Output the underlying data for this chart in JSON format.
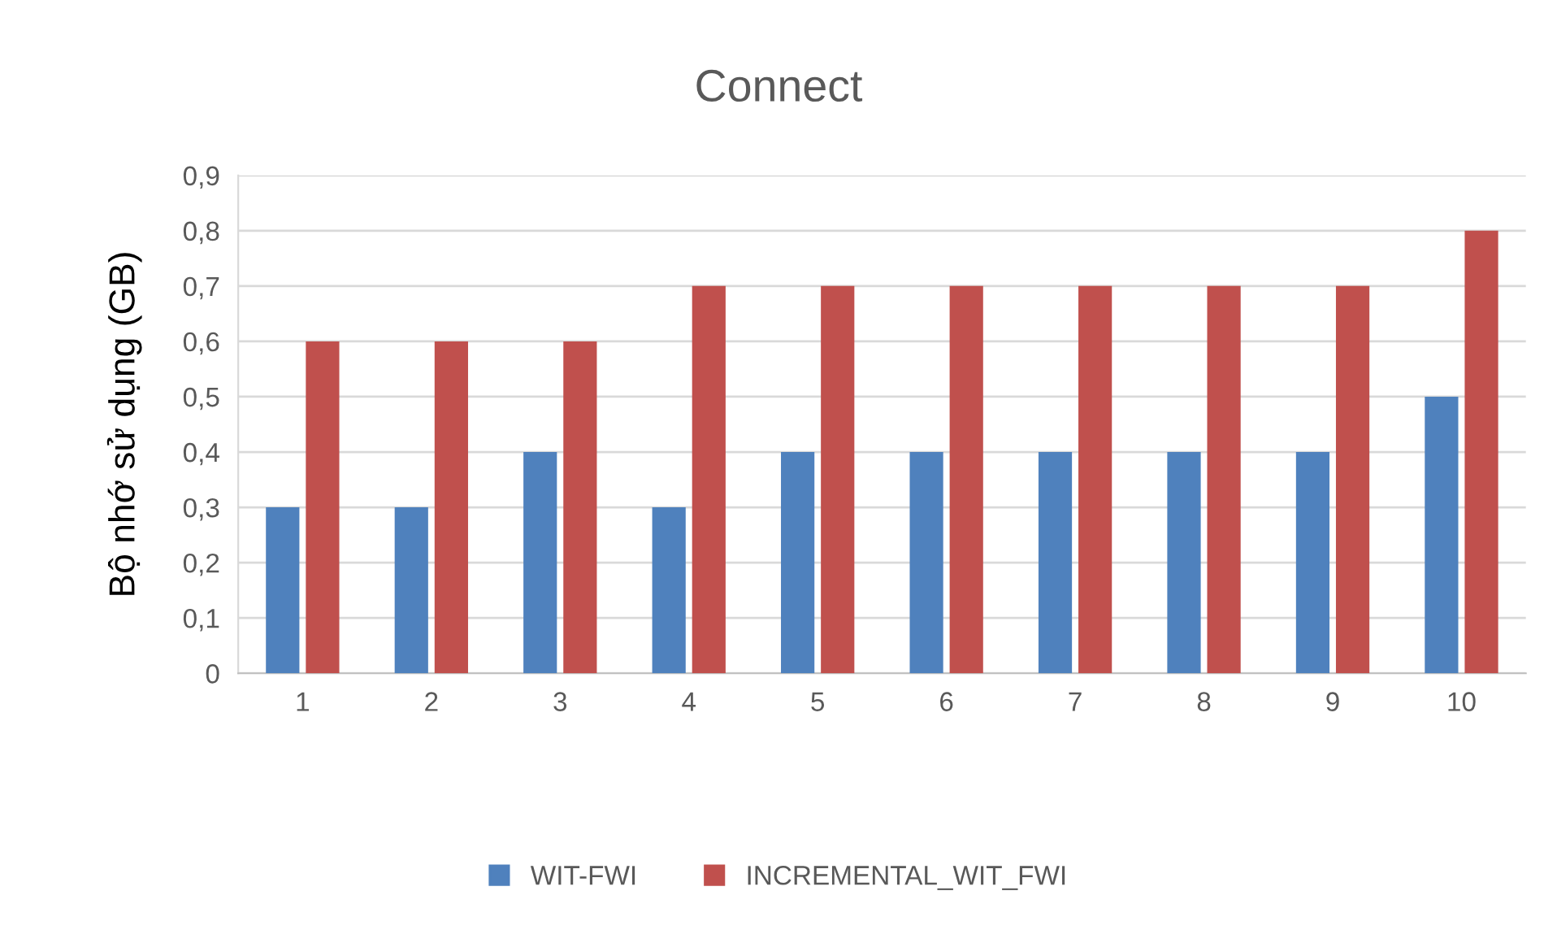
{
  "chart_data": {
    "type": "bar",
    "title": "Connect",
    "ylabel": "Bộ nhớ sử dụng (GB)",
    "categories": [
      "1",
      "2",
      "3",
      "4",
      "5",
      "6",
      "7",
      "8",
      "9",
      "10"
    ],
    "series": [
      {
        "name": "WIT-FWI",
        "color": "#4f81bd",
        "values": [
          0.3,
          0.3,
          0.4,
          0.3,
          0.4,
          0.4,
          0.4,
          0.4,
          0.4,
          0.5
        ]
      },
      {
        "name": "INCREMENTAL_WIT_FWI",
        "color": "#c0504d",
        "values": [
          0.6,
          0.6,
          0.6,
          0.7,
          0.7,
          0.7,
          0.7,
          0.7,
          0.7,
          0.8
        ]
      }
    ],
    "ylim": [
      0,
      0.9
    ],
    "yticks": [
      0,
      {
        "value": 0.1,
        "label": "0,1"
      },
      {
        "value": 0.2,
        "label": "0,2"
      },
      {
        "value": 0.3,
        "label": "0,3"
      },
      {
        "value": 0.4,
        "label": "0,4"
      },
      {
        "value": 0.5,
        "label": "0,5"
      },
      {
        "value": 0.6,
        "label": "0,6"
      },
      {
        "value": 0.7,
        "label": "0,7"
      },
      {
        "value": 0.8,
        "label": "0,8"
      },
      {
        "value": 0.9,
        "label": "0,9"
      }
    ],
    "grid": "y",
    "legend": "bottom"
  }
}
